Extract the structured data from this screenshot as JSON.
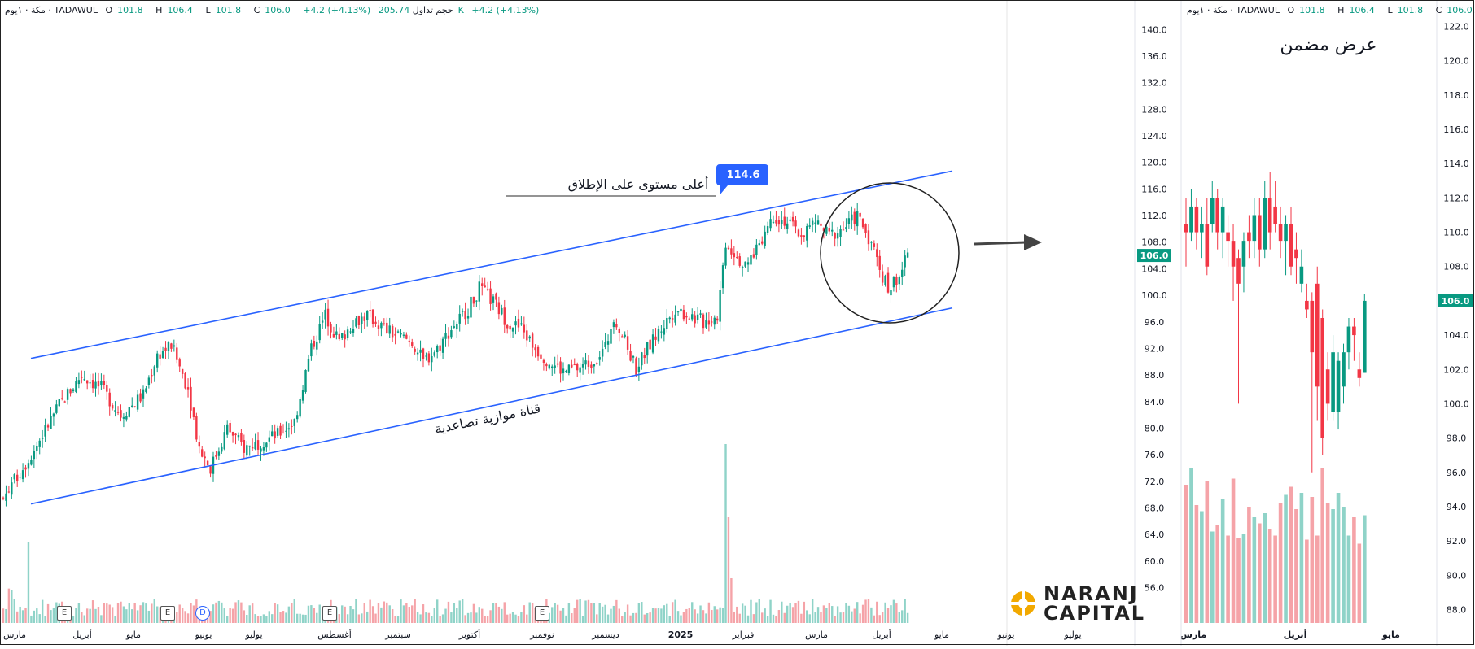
{
  "main_legend": {
    "symbol": "مكة · ١يوم · TADAWUL",
    "o_label": "O",
    "o": "101.8",
    "h_label": "H",
    "h": "106.4",
    "l_label": "L",
    "l": "101.8",
    "c_label": "C",
    "c": "106.0",
    "change": "+4.2 (+4.13%)",
    "volume_label": "حجم تداول",
    "volume": "205.74K",
    "vol_change": "+4.2 (+4.13%)"
  },
  "inset_legend": {
    "symbol": "مكة · ١يوم · TADAWUL",
    "o_label": "O",
    "o": "101.8",
    "h_label": "H",
    "h": "106.4",
    "l_label": "L",
    "l": "101.8",
    "c_label": "C",
    "c": "106.0..."
  },
  "annotations": {
    "top_level_text": "أعلى مستوى على الإطلاق",
    "top_level_value": "114.6",
    "channel_text": "قناة موازية تصاعدية",
    "inset_title": "عرض مضمن"
  },
  "markers": [
    "E",
    "E",
    "D",
    "E",
    "E"
  ],
  "brand": {
    "line1": "NARANJ",
    "line2": "CAPITAL",
    "accent": "#f2a900"
  },
  "colors": {
    "up": "#089981",
    "down": "#f23645",
    "up_vol": "#8fd3c8",
    "down_vol": "#f5a3a8",
    "channel": "#2962ff",
    "price_tag": "#089981"
  },
  "chart_data": [
    {
      "type": "candlestick",
      "title": "",
      "xlabel": "",
      "ylabel": "",
      "ylim": [
        53,
        142
      ],
      "y_ticks": [
        "140.0",
        "136.0",
        "132.0",
        "128.0",
        "124.0",
        "120.0",
        "116.0",
        "112.0",
        "108.0",
        "104.0",
        "100.0",
        "96.0",
        "92.0",
        "88.0",
        "84.0",
        "80.0",
        "76.0",
        "72.0",
        "68.0",
        "64.0",
        "60.0",
        "56.0"
      ],
      "x_ticks": [
        "مارس",
        "أبريل",
        "مايو",
        "يونيو",
        "يوليو",
        "أغسطس",
        "سبتمبر",
        "أكتوبر",
        "نوفمبر",
        "ديسمبر",
        "2025",
        "فبراير",
        "مارس",
        "أبريل",
        "مايو",
        "يونيو",
        "يوليو"
      ],
      "last_price": "106.0",
      "grid": false,
      "close_path": [
        {
          "x": 0,
          "y": 69.5
        },
        {
          "x": 10,
          "y": 76
        },
        {
          "x": 20,
          "y": 83.5
        },
        {
          "x": 28,
          "y": 88
        },
        {
          "x": 35,
          "y": 86
        },
        {
          "x": 42,
          "y": 82
        },
        {
          "x": 50,
          "y": 85
        },
        {
          "x": 55,
          "y": 91
        },
        {
          "x": 60,
          "y": 92.5
        },
        {
          "x": 66,
          "y": 86
        },
        {
          "x": 70,
          "y": 77
        },
        {
          "x": 74,
          "y": 74
        },
        {
          "x": 80,
          "y": 80
        },
        {
          "x": 86,
          "y": 77
        },
        {
          "x": 92,
          "y": 78
        },
        {
          "x": 98,
          "y": 79
        },
        {
          "x": 104,
          "y": 81
        },
        {
          "x": 110,
          "y": 92
        },
        {
          "x": 115,
          "y": 97
        },
        {
          "x": 120,
          "y": 93
        },
        {
          "x": 125,
          "y": 96
        },
        {
          "x": 130,
          "y": 97
        },
        {
          "x": 136,
          "y": 95
        },
        {
          "x": 140,
          "y": 94
        },
        {
          "x": 146,
          "y": 93
        },
        {
          "x": 150,
          "y": 90
        },
        {
          "x": 155,
          "y": 92
        },
        {
          "x": 160,
          "y": 95
        },
        {
          "x": 166,
          "y": 98
        },
        {
          "x": 170,
          "y": 101
        },
        {
          "x": 175,
          "y": 99
        },
        {
          "x": 180,
          "y": 96
        },
        {
          "x": 185,
          "y": 95
        },
        {
          "x": 190,
          "y": 92
        },
        {
          "x": 195,
          "y": 90
        },
        {
          "x": 200,
          "y": 88.5
        },
        {
          "x": 205,
          "y": 89
        },
        {
          "x": 210,
          "y": 90
        },
        {
          "x": 215,
          "y": 92
        },
        {
          "x": 218,
          "y": 97
        },
        {
          "x": 222,
          "y": 93
        },
        {
          "x": 226,
          "y": 89
        },
        {
          "x": 230,
          "y": 92
        },
        {
          "x": 235,
          "y": 95
        },
        {
          "x": 240,
          "y": 98
        },
        {
          "x": 245,
          "y": 97
        },
        {
          "x": 250,
          "y": 96
        },
        {
          "x": 255,
          "y": 97
        },
        {
          "x": 258,
          "y": 108
        },
        {
          "x": 262,
          "y": 106
        },
        {
          "x": 265,
          "y": 104
        },
        {
          "x": 270,
          "y": 108
        },
        {
          "x": 275,
          "y": 112
        },
        {
          "x": 280,
          "y": 111
        },
        {
          "x": 285,
          "y": 109
        },
        {
          "x": 290,
          "y": 111
        },
        {
          "x": 295,
          "y": 109
        },
        {
          "x": 300,
          "y": 110
        },
        {
          "x": 305,
          "y": 112
        },
        {
          "x": 310,
          "y": 108
        },
        {
          "x": 313,
          "y": 104
        },
        {
          "x": 316,
          "y": 101
        },
        {
          "x": 320,
          "y": 103
        },
        {
          "x": 323,
          "y": 106
        }
      ],
      "series": [
        {
          "name": "",
          "type": "trendline",
          "points": [
            {
              "x": 0,
              "y": 90.5
            },
            {
              "x": 330,
              "y": 118.7
            }
          ]
        },
        {
          "name": "",
          "type": "trendline",
          "points": [
            {
              "x": 0,
              "y": 68.6
            },
            {
              "x": 330,
              "y": 98.1
            }
          ]
        },
        {
          "name": "",
          "type": "horizontal",
          "points": [
            {
              "x": 176,
              "y": 114.6
            },
            {
              "x": 246,
              "y": 114.6
            }
          ]
        }
      ]
    },
    {
      "type": "candlestick",
      "title": "عرض مضمن",
      "xlabel": "",
      "ylabel": "",
      "ylim": [
        87.5,
        122.5
      ],
      "y_ticks": [
        "122.0",
        "120.0",
        "118.0",
        "116.0",
        "114.0",
        "112.0",
        "110.0",
        "108.0",
        "106.0",
        "104.0",
        "102.0",
        "100.0",
        "98.0",
        "96.0",
        "94.0",
        "92.0",
        "90.0",
        "88.0"
      ],
      "x_ticks": [
        "مارس",
        "أبريل",
        "مايو"
      ],
      "last_price": "106.0",
      "candles": [
        [
          110.5,
          112,
          108,
          110
        ],
        [
          110,
          112.5,
          109.5,
          111.5
        ],
        [
          111.5,
          112,
          109,
          110
        ],
        [
          110,
          111.5,
          108.5,
          110.5
        ],
        [
          110.5,
          112,
          107.5,
          108
        ],
        [
          110.5,
          113,
          110,
          112
        ],
        [
          112,
          112.5,
          109,
          110
        ],
        [
          110,
          112,
          108.5,
          111.5
        ],
        [
          110,
          111,
          108,
          109.5
        ],
        [
          109.5,
          110.5,
          106,
          108
        ],
        [
          108.5,
          109,
          100,
          107
        ],
        [
          108,
          110,
          106.5,
          109.5
        ],
        [
          110,
          111,
          108.5,
          109.5
        ],
        [
          109.5,
          112,
          108.5,
          111
        ],
        [
          111,
          112,
          108,
          109
        ],
        [
          109,
          113,
          108.5,
          112
        ],
        [
          112,
          113.5,
          109,
          110
        ],
        [
          111.5,
          113,
          110,
          110.5
        ],
        [
          110.5,
          111.5,
          108.5,
          109.5
        ],
        [
          109.5,
          111,
          107.5,
          110.5
        ],
        [
          110.5,
          111.5,
          107.5,
          108
        ],
        [
          109,
          110,
          107,
          108.5
        ],
        [
          107,
          109,
          106.5,
          108
        ],
        [
          106,
          107,
          105,
          105.5
        ],
        [
          106,
          106.5,
          96,
          103
        ],
        [
          107,
          108,
          99,
          101
        ],
        [
          105,
          105.5,
          97,
          98
        ],
        [
          102,
          103,
          99,
          100
        ],
        [
          99.5,
          104,
          99,
          103
        ],
        [
          99.5,
          103,
          98.5,
          102.5
        ],
        [
          101,
          103.5,
          100,
          103
        ],
        [
          103,
          105,
          102,
          104.5
        ],
        [
          104.5,
          105,
          102.5,
          104
        ],
        [
          102,
          103,
          101,
          101.5
        ],
        [
          101.8,
          106.4,
          101.8,
          106
        ]
      ],
      "volume": [
        6.8,
        7.6,
        5.8,
        5.5,
        7,
        4.5,
        4.8,
        6.1,
        4.3,
        7.1,
        4.2,
        4.4,
        5.7,
        5.2,
        4.9,
        5.4,
        4.6,
        4.3,
        5.9,
        6.3,
        6.7,
        5.6,
        6.4,
        4.1,
        6.2,
        4.3,
        7.6,
        5.9,
        5.6,
        6.4,
        5.7,
        4.3,
        5.2,
        3.9,
        5.3
      ]
    }
  ]
}
